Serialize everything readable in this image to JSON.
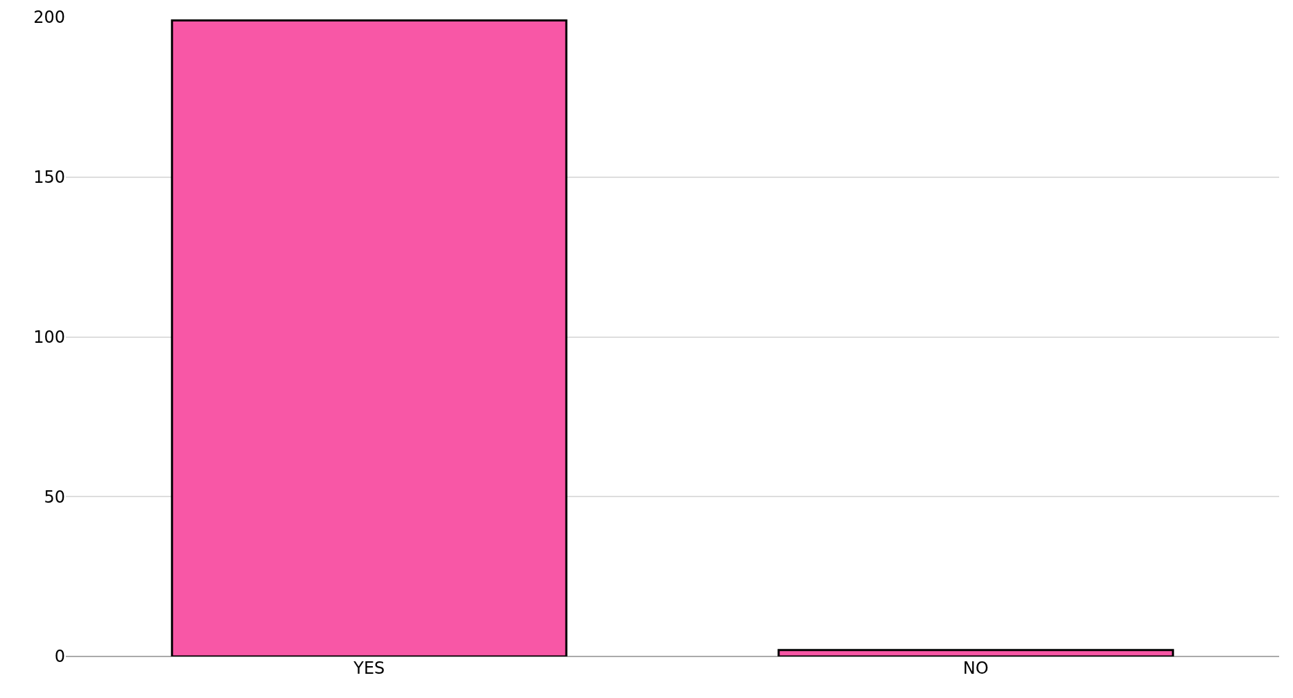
{
  "chart_data": {
    "type": "bar",
    "categories": [
      "YES",
      "NO"
    ],
    "values": [
      199,
      2
    ],
    "color": "#f857a6",
    "ylim": [
      0,
      200
    ],
    "yticks": [
      0,
      50,
      100,
      150,
      200
    ],
    "grid": "y"
  }
}
